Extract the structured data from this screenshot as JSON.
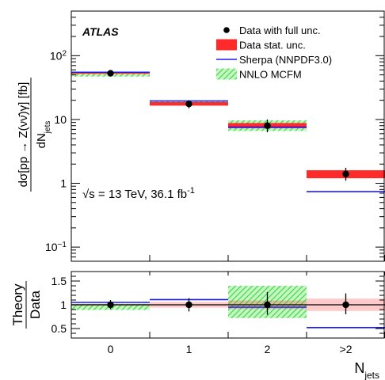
{
  "chart_data": [
    {
      "type": "scatter",
      "panel": "main",
      "experiment_label": "ATLAS",
      "energy_label": {
        "prefix": "√s = 13 TeV, 36.1 fb",
        "sup": "-1"
      },
      "ylabel": {
        "numerator": "dσ[pp → Z(νν̄)γ] [fb]",
        "denominator": "dN",
        "denominator_sub": "jets"
      },
      "y_scale": "log",
      "ylim": [
        0.06,
        500
      ],
      "y_ticks": [
        {
          "value": 0.1,
          "base": "10",
          "sup": "−1"
        },
        {
          "value": 1,
          "label": "1"
        },
        {
          "value": 10,
          "label": "10"
        },
        {
          "value": 100,
          "base": "10",
          "sup": "2"
        }
      ],
      "categories": [
        "0",
        "1",
        "2",
        ">2"
      ],
      "legend_position": "top-right",
      "legend": [
        {
          "label": "Data with full unc.",
          "style": "marker",
          "color": "#000000"
        },
        {
          "label": "Data stat. unc.",
          "style": "box",
          "color": "#ff2a2a"
        },
        {
          "label": "Sherpa (NNPDF3.0)",
          "style": "line",
          "color": "#1a1aff"
        },
        {
          "label": "NNLO MCFM",
          "style": "hatch",
          "color": "#33dd33"
        }
      ],
      "series": [
        {
          "name": "Data with full unc.",
          "values": [
            53,
            17.5,
            8,
            1.4
          ],
          "err_low": [
            48,
            15,
            6.3,
            1.1
          ],
          "err_high": [
            58,
            20,
            10,
            1.75
          ]
        },
        {
          "name": "Data stat. unc.",
          "low": [
            52,
            16.5,
            7.3,
            1.2
          ],
          "high": [
            54.5,
            18.7,
            8.8,
            1.6
          ]
        },
        {
          "name": "Sherpa (NNPDF3.0)",
          "values": [
            55,
            19.5,
            7.6,
            0.74
          ]
        },
        {
          "name": "NNLO MCFM",
          "low": [
            47,
            17.5,
            6.6,
            null
          ],
          "high": [
            54,
            19.8,
            9.7,
            null
          ]
        }
      ]
    },
    {
      "type": "scatter",
      "panel": "ratio",
      "ylabel": {
        "top": "Theory",
        "bottom": "Data"
      },
      "xlabel": {
        "base": "N",
        "sub": "jets"
      },
      "ylim": [
        0.3,
        1.7
      ],
      "y_ticks": [
        0.5,
        1,
        1.5
      ],
      "y_tick_labels": [
        "0.5",
        "1",
        "1.5"
      ],
      "reference_line": 1,
      "categories": [
        "0",
        "1",
        "2",
        ">2"
      ],
      "series": [
        {
          "name": "Data with full unc.",
          "values": [
            1,
            1,
            1,
            1
          ],
          "err_low": [
            0.91,
            0.86,
            0.79,
            0.8
          ],
          "err_high": [
            1.1,
            1.14,
            1.27,
            1.24
          ]
        },
        {
          "name": "Data stat. unc.",
          "low": [
            0.98,
            0.94,
            0.91,
            0.87
          ],
          "high": [
            1.02,
            1.06,
            1.09,
            1.13
          ]
        },
        {
          "name": "Sherpa (NNPDF3.0)",
          "values": [
            1.05,
            1.11,
            0.95,
            0.52
          ]
        },
        {
          "name": "NNLO MCFM",
          "low": [
            0.89,
            null,
            0.72,
            null
          ],
          "high": [
            1.02,
            null,
            1.4,
            null
          ]
        }
      ]
    }
  ]
}
